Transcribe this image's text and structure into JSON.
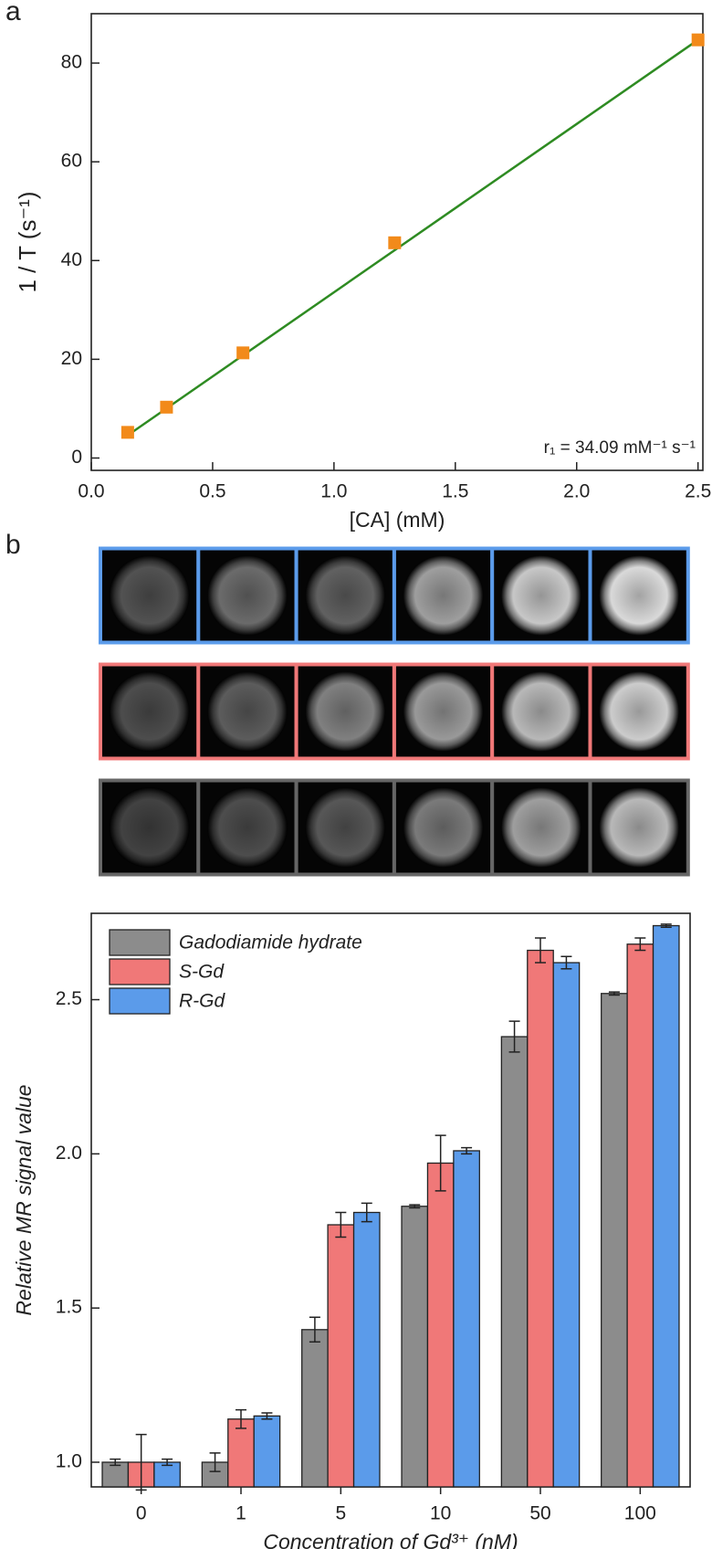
{
  "panel_labels": [
    "a",
    "b"
  ],
  "chart_data": [
    {
      "type": "scatter",
      "xlabel": "[CA] (mM)",
      "ylabel": "1 / T (s⁻¹)",
      "annotation": "r₁ = 34.09 mM⁻¹ s⁻¹",
      "x": [
        0.15,
        0.31,
        0.625,
        1.25,
        2.5
      ],
      "values": [
        5.2,
        10.3,
        21.3,
        43.6,
        84.7
      ],
      "color": "#f28a1a",
      "fit": {
        "x": [
          0.15,
          2.5
        ],
        "y": [
          4.6,
          84.7
        ],
        "color": "#2e8b22"
      },
      "xlim": [
        0,
        2.52
      ],
      "xticks": [
        {
          "value": 0,
          "label": "0.0"
        },
        0.5,
        {
          "value": 1,
          "label": "1.0"
        },
        1.5,
        {
          "value": 2,
          "label": "2.0"
        },
        2.5
      ],
      "ylim": [
        -2.5,
        90
      ],
      "yticks": [
        0,
        20,
        40,
        60,
        80
      ]
    },
    {
      "type": "bar",
      "xlabel": "Concentration of Gd³⁺ (nM)",
      "ylabel": "Relative MR signal value",
      "categories": [
        "0",
        "1",
        "5",
        "10",
        "50",
        "100"
      ],
      "series": [
        {
          "name": "Gadodiamide hydrate",
          "color": "#8c8c8c",
          "values": [
            1.0,
            1.0,
            1.43,
            1.83,
            2.38,
            2.52
          ],
          "errors": [
            0.01,
            0.03,
            0.04,
            0.005,
            0.05,
            0.005
          ]
        },
        {
          "name": "S-Gd",
          "color": "#f07878",
          "values": [
            1.0,
            1.14,
            1.77,
            1.97,
            2.66,
            2.68
          ],
          "errors": [
            0.09,
            0.03,
            0.04,
            0.09,
            0.04,
            0.02
          ]
        },
        {
          "name": "R-Gd",
          "color": "#5b9bea",
          "values": [
            1.0,
            1.15,
            1.81,
            2.01,
            2.62,
            2.74
          ],
          "errors": [
            0.01,
            0.01,
            0.03,
            0.01,
            0.02,
            0.005
          ]
        }
      ],
      "ylim": [
        0.92,
        2.78
      ],
      "yticks": [
        {
          "value": 1,
          "label": "1.0"
        },
        1.5,
        {
          "value": 2,
          "label": "2.0"
        },
        2.5
      ],
      "legend": "upper left"
    }
  ]
}
